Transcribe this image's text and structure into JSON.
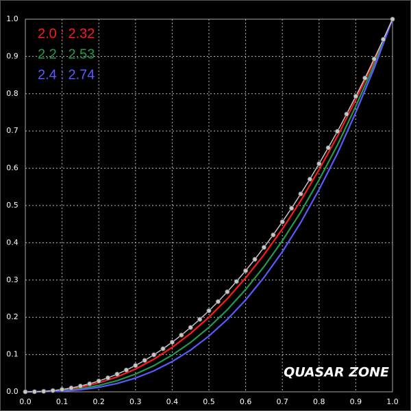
{
  "chart_data": {
    "type": "line",
    "x": [
      0,
      0.05,
      0.1,
      0.15,
      0.2,
      0.25,
      0.3,
      0.35,
      0.4,
      0.45,
      0.5,
      0.55,
      0.6,
      0.65,
      0.7,
      0.75,
      0.8,
      0.85,
      0.9,
      0.95,
      1
    ],
    "series": [
      {
        "name": "2.0 : 2.32",
        "color": "#ff1a1a",
        "values": [
          0,
          0.00096,
          0.0048,
          0.0123,
          0.0239,
          0.0401,
          0.0612,
          0.0875,
          0.1194,
          0.1567,
          0.2003,
          0.2498,
          0.3057,
          0.368,
          0.4369,
          0.5128,
          0.5963,
          0.686,
          0.7835,
          0.8878,
          1
        ]
      },
      {
        "name": "2.2 : 2.53",
        "color": "#1f9a4e",
        "values": [
          0,
          0.0005,
          0.003,
          0.0082,
          0.0171,
          0.03,
          0.0475,
          0.0702,
          0.0986,
          0.1325,
          0.173,
          0.2203,
          0.2745,
          0.3362,
          0.4053,
          0.4824,
          0.5689,
          0.6623,
          0.7664,
          0.878,
          1
        ]
      },
      {
        "name": "2.4 : 2.74",
        "color": "#5a5aff",
        "values": [
          0,
          0.0003,
          0.0018,
          0.0055,
          0.0122,
          0.0224,
          0.0369,
          0.0563,
          0.0813,
          0.112,
          0.1497,
          0.1942,
          0.2466,
          0.307,
          0.376,
          0.4543,
          0.5428,
          0.6396,
          0.7498,
          0.8685,
          1
        ]
      },
      {
        "color": "#c8c8c8",
        "markers": true,
        "x": [
          0,
          0.025,
          0.05,
          0.075,
          0.1,
          0.125,
          0.15,
          0.175,
          0.2,
          0.225,
          0.25,
          0.275,
          0.3,
          0.325,
          0.35,
          0.375,
          0.4,
          0.425,
          0.45,
          0.475,
          0.5,
          0.525,
          0.55,
          0.575,
          0.6,
          0.625,
          0.65,
          0.675,
          0.7,
          0.725,
          0.75,
          0.775,
          0.8,
          0.825,
          0.85,
          0.875,
          0.9,
          0.925,
          0.95,
          0.975,
          1
        ],
        "values": [
          0,
          0.0003,
          0.0014,
          0.0033,
          0.0063,
          0.0103,
          0.0154,
          0.0216,
          0.029,
          0.0375,
          0.0474,
          0.0584,
          0.0707,
          0.0843,
          0.0993,
          0.1156,
          0.1332,
          0.1522,
          0.1726,
          0.1945,
          0.2176,
          0.2422,
          0.2684,
          0.2961,
          0.325,
          0.3556,
          0.3877,
          0.4211,
          0.4562,
          0.4927,
          0.5311,
          0.5707,
          0.6121,
          0.655,
          0.6991,
          0.7453,
          0.793,
          0.842,
          0.8932,
          0.9458,
          1
        ]
      }
    ],
    "xlim": [
      0,
      1
    ],
    "ylim": [
      0,
      1
    ],
    "xticks": [
      {
        "value": 0,
        "label": "0.0"
      },
      0.1,
      0.2,
      0.3,
      0.4,
      0.5,
      0.6,
      0.7,
      0.8,
      0.9,
      {
        "value": 1,
        "label": "1.0"
      }
    ],
    "yticks": [
      {
        "value": 0,
        "label": "0.0"
      },
      0.1,
      0.2,
      0.3,
      0.4,
      0.5,
      0.6,
      0.7,
      0.8,
      0.9,
      {
        "value": 1,
        "label": "1.0"
      }
    ],
    "grid": true,
    "legend": "top-left",
    "watermark": "QUASAR ZONE"
  }
}
